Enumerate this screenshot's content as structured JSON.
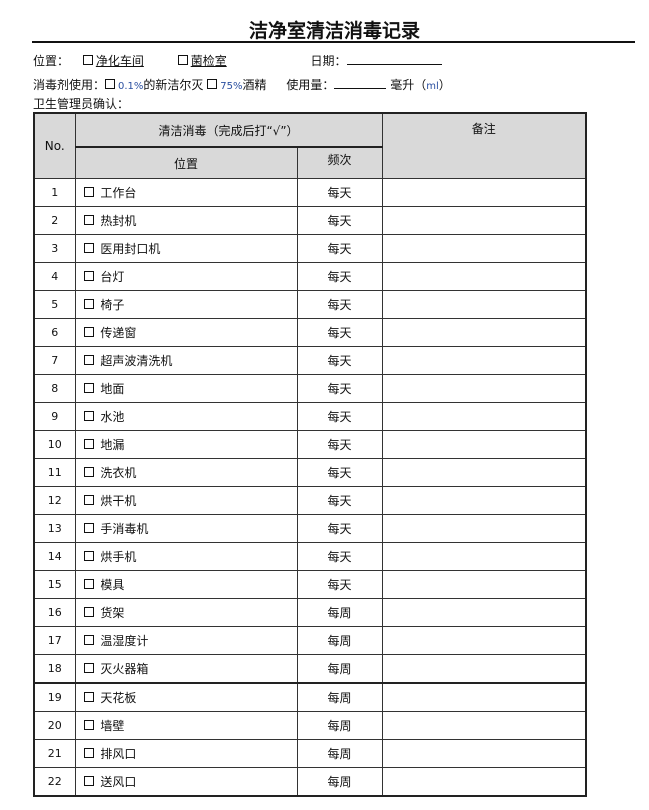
{
  "title": "洁净室清洁消毒记录",
  "location": {
    "label": "位置：",
    "option1": "净化车间",
    "option2": "菌检室"
  },
  "date": {
    "label": "日期："
  },
  "disinfectant": {
    "label": "消毒剂使用：",
    "option1_pct": "0.1%",
    "option1_name": "的新洁尔灭",
    "option2_pct": "75%",
    "option2_name": "酒精",
    "usage_label": "使用量：",
    "unit": "毫升（",
    "unit_ml": "ml",
    "unit_close": "）"
  },
  "manager": {
    "label": "卫生管理员确认："
  },
  "table": {
    "headers": {
      "no": "No.",
      "cleaning": "清洁消毒（完成后打“√”）",
      "position": "位置",
      "frequency": "频次",
      "remarks": "备注"
    },
    "rows": [
      {
        "no": "1",
        "item": "工作台",
        "freq": "每天"
      },
      {
        "no": "2",
        "item": "热封机",
        "freq": "每天"
      },
      {
        "no": "3",
        "item": "医用封口机",
        "freq": "每天"
      },
      {
        "no": "4",
        "item": "台灯",
        "freq": "每天"
      },
      {
        "no": "5",
        "item": "椅子",
        "freq": "每天"
      },
      {
        "no": "6",
        "item": "传递窗",
        "freq": "每天"
      },
      {
        "no": "7",
        "item": "超声波清洗机",
        "freq": "每天"
      },
      {
        "no": "8",
        "item": "地面",
        "freq": "每天"
      },
      {
        "no": "9",
        "item": "水池",
        "freq": "每天"
      },
      {
        "no": "10",
        "item": "地漏",
        "freq": "每天"
      },
      {
        "no": "11",
        "item": "洗衣机",
        "freq": "每天"
      },
      {
        "no": "12",
        "item": "烘干机",
        "freq": "每天"
      },
      {
        "no": "13",
        "item": "手消毒机",
        "freq": "每天"
      },
      {
        "no": "14",
        "item": "烘手机",
        "freq": "每天"
      },
      {
        "no": "15",
        "item": "模具",
        "freq": "每天"
      },
      {
        "no": "16",
        "item": "货架",
        "freq": "每周"
      },
      {
        "no": "17",
        "item": "温湿度计",
        "freq": "每周"
      },
      {
        "no": "18",
        "item": "灭火器箱",
        "freq": "每周"
      },
      {
        "no": "19",
        "item": "天花板",
        "freq": "每周"
      },
      {
        "no": "20",
        "item": "墙壁",
        "freq": "每周"
      },
      {
        "no": "21",
        "item": "排风口",
        "freq": "每周"
      },
      {
        "no": "22",
        "item": "送风口",
        "freq": "每周"
      }
    ]
  }
}
